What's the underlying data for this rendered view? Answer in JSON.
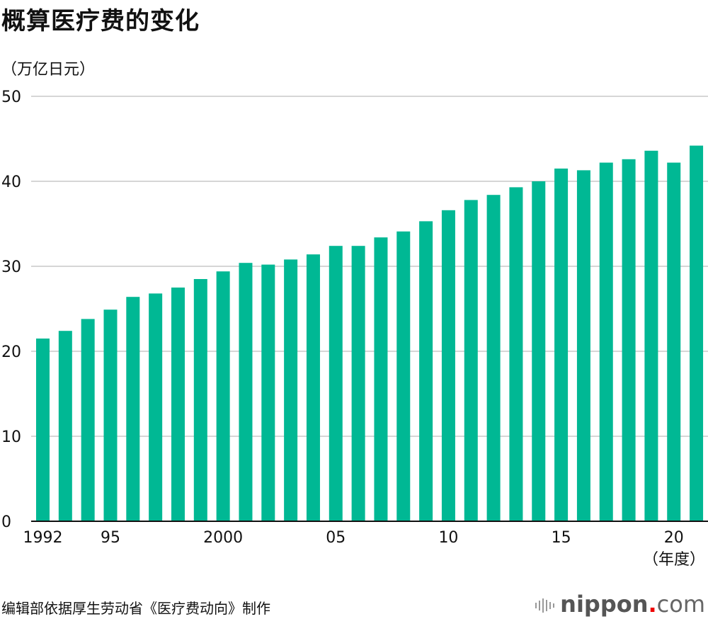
{
  "chart_data": {
    "type": "bar",
    "title": "概算医疗费的变化",
    "ylabel": "（万亿日元）",
    "xlabel": "（年度）",
    "ylim": [
      0,
      50
    ],
    "yticks": [
      0,
      10,
      20,
      30,
      40,
      50
    ],
    "grid": true,
    "bar_color": "#00b894",
    "categories": [
      1992,
      1993,
      1994,
      1995,
      1996,
      1997,
      1998,
      1999,
      2000,
      2001,
      2002,
      2003,
      2004,
      2005,
      2006,
      2007,
      2008,
      2009,
      2010,
      2011,
      2012,
      2013,
      2014,
      2015,
      2016,
      2017,
      2018,
      2019,
      2020,
      2021
    ],
    "xtick_labels": [
      {
        "index": 0,
        "label": "1992"
      },
      {
        "index": 3,
        "label": "95"
      },
      {
        "index": 8,
        "label": "2000"
      },
      {
        "index": 13,
        "label": "05"
      },
      {
        "index": 18,
        "label": "10"
      },
      {
        "index": 23,
        "label": "15"
      },
      {
        "index": 28,
        "label": "20"
      }
    ],
    "values": [
      21.5,
      22.4,
      23.8,
      24.9,
      26.4,
      26.8,
      27.5,
      28.5,
      29.4,
      30.4,
      30.2,
      30.8,
      31.4,
      32.4,
      32.4,
      33.4,
      34.1,
      35.3,
      36.6,
      37.8,
      38.4,
      39.3,
      40.0,
      41.5,
      41.3,
      42.2,
      42.6,
      43.6,
      42.2,
      44.2
    ]
  },
  "source": "编辑部依据厚生劳动省《医疗费动向》制作",
  "logo": {
    "name": "nippon",
    "dot": ".",
    "suffix": "com"
  }
}
